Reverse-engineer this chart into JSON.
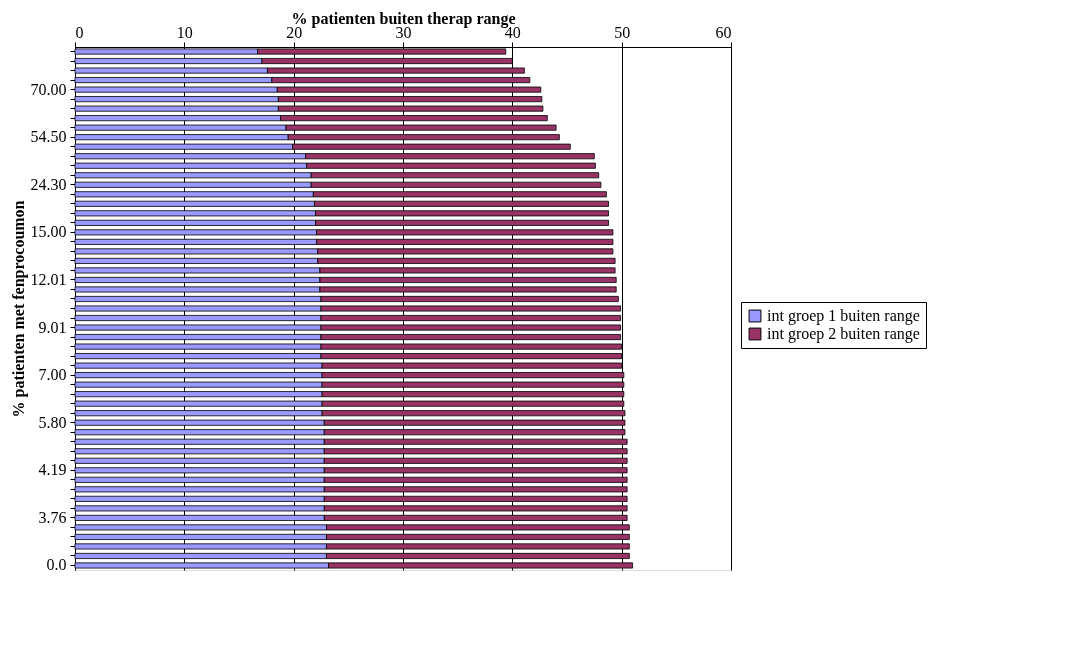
{
  "chart_data": {
    "type": "bar",
    "orientation": "horizontal",
    "stacked": true,
    "xlabel": "%  patienten buiten therap range",
    "ylabel": "% patienten met fenprocoumon",
    "categories": [
      null,
      null,
      null,
      null,
      "70.00",
      null,
      null,
      null,
      null,
      "54.50",
      null,
      null,
      null,
      null,
      "24.30",
      null,
      null,
      null,
      null,
      "15.00",
      null,
      null,
      null,
      null,
      "12.01",
      null,
      null,
      null,
      null,
      "9.01",
      null,
      null,
      null,
      null,
      "7.00",
      null,
      null,
      null,
      null,
      "5.80",
      null,
      null,
      null,
      null,
      "4.19",
      null,
      null,
      null,
      null,
      "3.76",
      null,
      null,
      null,
      null,
      "0.0"
    ],
    "series": [
      {
        "name": "int groep 1 buiten range",
        "color": "#9999ff",
        "values": [
          16.7,
          17.1,
          17.6,
          18.0,
          18.5,
          18.6,
          18.6,
          18.8,
          19.3,
          19.5,
          19.9,
          21.1,
          21.2,
          21.6,
          21.6,
          21.8,
          21.9,
          22.0,
          22.0,
          22.1,
          22.1,
          22.2,
          22.2,
          22.4,
          22.4,
          22.4,
          22.5,
          22.5,
          22.5,
          22.5,
          22.5,
          22.5,
          22.5,
          22.6,
          22.6,
          22.6,
          22.6,
          22.6,
          22.6,
          22.8,
          22.8,
          22.8,
          22.8,
          22.8,
          22.8,
          22.8,
          22.8,
          22.8,
          22.8,
          22.8,
          23.0,
          23.0,
          23.0,
          23.0,
          23.2
        ]
      },
      {
        "name": "int groep 2 buiten range",
        "color": "#993366",
        "values": [
          22.7,
          22.9,
          23.5,
          23.6,
          24.1,
          24.1,
          24.2,
          24.4,
          24.7,
          24.8,
          25.4,
          26.4,
          26.4,
          26.3,
          26.5,
          26.8,
          26.9,
          26.8,
          26.8,
          27.1,
          27.1,
          27.0,
          27.2,
          27.0,
          27.1,
          27.1,
          27.2,
          27.4,
          27.4,
          27.4,
          27.4,
          27.5,
          27.5,
          27.4,
          27.6,
          27.6,
          27.6,
          27.6,
          27.7,
          27.5,
          27.5,
          27.7,
          27.7,
          27.7,
          27.7,
          27.7,
          27.7,
          27.7,
          27.7,
          27.7,
          27.7,
          27.7,
          27.7,
          27.7,
          27.8
        ]
      }
    ],
    "xlim": [
      0,
      60
    ],
    "xticks": [
      0,
      10,
      20,
      30,
      40,
      50,
      60
    ],
    "grid": "x",
    "legend": "right"
  }
}
